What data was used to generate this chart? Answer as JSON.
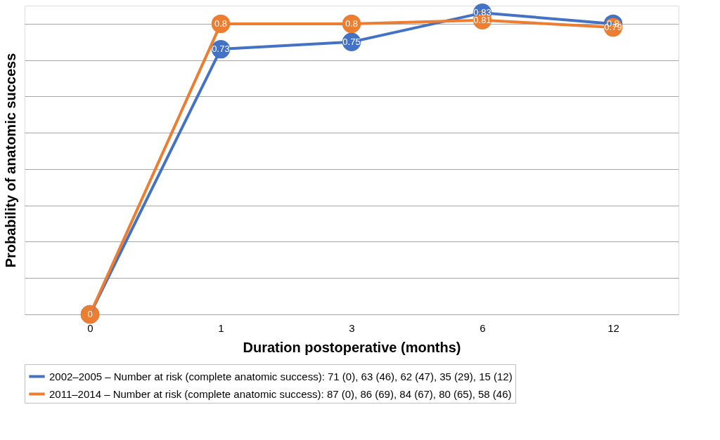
{
  "chart_data": {
    "type": "line",
    "xlabel": "Duration postoperative (months)",
    "ylabel": "Probability of anatomic success",
    "categories": [
      "0",
      "1",
      "3",
      "6",
      "12"
    ],
    "series": [
      {
        "name": "2002–2005 – Number at risk (complete anatomic success): 71 (0), 63 (46), 62 (47), 35 (29), 15 (12)",
        "color": "#4472c4",
        "values": [
          0,
          0.73,
          0.75,
          0.83,
          0.8
        ],
        "value_labels": [
          null,
          "0.73",
          "0.75",
          "0.83",
          "0.8"
        ]
      },
      {
        "name": "2011–2014 – Number at risk (complete anatomic success): 87 (0), 86 (69), 84 (67), 80 (65), 58 (46)",
        "color": "#ed7d31",
        "values": [
          0,
          0.8,
          0.8,
          0.81,
          0.79
        ],
        "value_labels": [
          "0",
          "0.8",
          "0.8",
          "0.81",
          "0.79"
        ]
      }
    ],
    "ylim": [
      0,
      0.85
    ],
    "yticks": [
      {
        "value": 0,
        "label": null
      },
      {
        "value": 0.1,
        "label": null
      },
      {
        "value": 0.2,
        "label": null
      },
      {
        "value": 0.3,
        "label": null
      },
      {
        "value": 0.4,
        "label": null
      },
      {
        "value": 0.5,
        "label": null
      },
      {
        "value": 0.6,
        "label": null
      },
      {
        "value": 0.7,
        "label": null
      },
      {
        "value": 0.8,
        "label": null
      }
    ],
    "tick_labels": "x",
    "grid": "y",
    "legend": "bottom",
    "marker": "circle",
    "line_style": "solid"
  }
}
